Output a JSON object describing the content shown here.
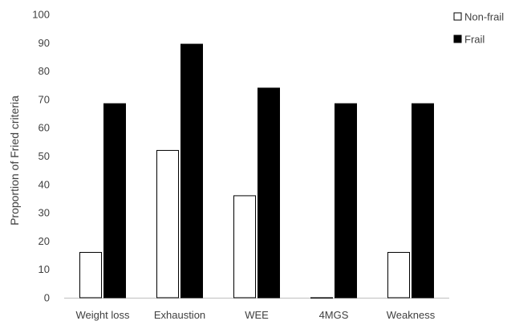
{
  "chart_data": {
    "type": "bar",
    "title": "",
    "xlabel": "",
    "ylabel": "Proportion of Fried criteria",
    "ylim": [
      0,
      100
    ],
    "yticks": [
      0,
      10,
      20,
      30,
      40,
      50,
      60,
      70,
      80,
      90,
      100
    ],
    "categories": [
      "Weight loss",
      "Exhaustion",
      "WEE",
      "4MGS",
      "Weakness"
    ],
    "series": [
      {
        "name": "Non-frail",
        "values": [
          16,
          52,
          36,
          0,
          16
        ],
        "fill": "#ffffff",
        "stroke": "#000000"
      },
      {
        "name": "Frail",
        "values": [
          68.5,
          89.5,
          74,
          68.5,
          68.5
        ],
        "fill": "#000000",
        "stroke": "#000000"
      }
    ],
    "grid": false,
    "legend_position": "top-right",
    "axis_color": "#bfbfbf",
    "text_color": "#404040"
  }
}
